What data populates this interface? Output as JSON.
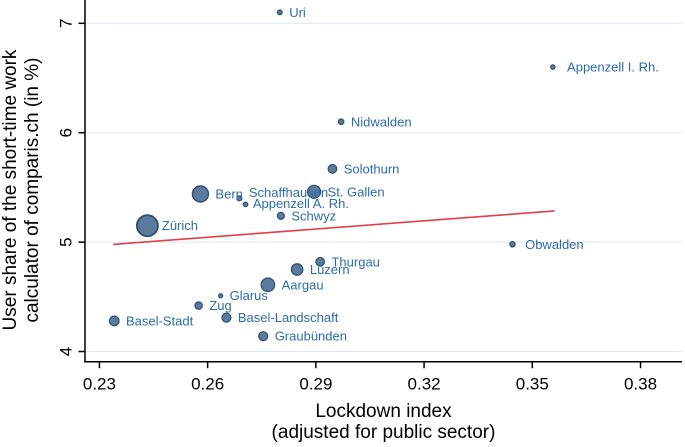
{
  "chart_data": {
    "type": "scatter",
    "title": "",
    "xlabel_lines": [
      "Lockdown index",
      "(adjusted for public sector)"
    ],
    "ylabel_lines": [
      "User share of the short-time work",
      "calculator of comparis.ch (in %)"
    ],
    "x_tick_labels": [
      "0.23",
      "0.26",
      "0.29",
      "0.32",
      "0.35",
      "0.38"
    ],
    "x_tick_values": [
      0.23,
      0.26,
      0.29,
      0.32,
      0.35,
      0.38
    ],
    "y_tick_labels": [
      "4",
      "5",
      "6",
      "7"
    ],
    "y_tick_values": [
      4,
      5,
      6,
      7
    ],
    "x_range": [
      0.226,
      0.3915
    ],
    "y_range": [
      3.907,
      7.213
    ],
    "grid": "horizontal-only",
    "legend": "none",
    "marker_style": "bubble-sized-by-canton",
    "points": [
      {
        "name": "Uri",
        "x": 0.28,
        "y": 7.1,
        "size": 4.8
      },
      {
        "name": "Appenzell I. Rh.",
        "x": 0.3557,
        "y": 6.6,
        "size": 4.4,
        "label_dx": 5
      },
      {
        "name": "Nidwalden",
        "x": 0.297,
        "y": 6.1,
        "size": 5.5
      },
      {
        "name": "Solothurn",
        "x": 0.2946,
        "y": 5.67,
        "size": 8.6
      },
      {
        "name": "Bern",
        "x": 0.258,
        "y": 5.44,
        "size": 16
      },
      {
        "name": "St. Gallen",
        "x": 0.2895,
        "y": 5.46,
        "size": 13
      },
      {
        "name": "Schaffhausen",
        "x": 0.2688,
        "y": 5.4,
        "size": 5,
        "label_dy": -6
      },
      {
        "name": "Appenzell A. Rh.",
        "x": 0.2705,
        "y": 5.345,
        "size": 4.6,
        "label_dx": -2,
        "label_dy": -1
      },
      {
        "name": "Schwyz",
        "x": 0.2803,
        "y": 5.24,
        "size": 7
      },
      {
        "name": "Zürich",
        "x": 0.2433,
        "y": 5.15,
        "size": 21,
        "label_dx": -3
      },
      {
        "name": "Obwalden",
        "x": 0.3445,
        "y": 4.98,
        "size": 5.3,
        "label_dx": 3
      },
      {
        "name": "Thurgau",
        "x": 0.2912,
        "y": 4.82,
        "size": 8.6
      },
      {
        "name": "Luzern",
        "x": 0.2848,
        "y": 4.75,
        "size": 11.5
      },
      {
        "name": "Aargau",
        "x": 0.2767,
        "y": 4.61,
        "size": 13.5
      },
      {
        "name": "Glarus",
        "x": 0.2636,
        "y": 4.51,
        "size": 4
      },
      {
        "name": "Zug",
        "x": 0.2575,
        "y": 4.42,
        "size": 7.4
      },
      {
        "name": "Basel-Stadt",
        "x": 0.2341,
        "y": 4.28,
        "size": 9.6
      },
      {
        "name": "Basel-Landschaft",
        "x": 0.2652,
        "y": 4.31,
        "size": 9
      },
      {
        "name": "Graubünden",
        "x": 0.2754,
        "y": 4.14,
        "size": 9
      }
    ],
    "trend_line": {
      "x1": 0.2338,
      "y1": 4.979,
      "x2": 0.3562,
      "y2": 5.285
    },
    "colors": {
      "marker_fill": "#5b7b9d",
      "marker_stroke": "#2e506f",
      "point_label": "#2d6ca9",
      "trend": "#e0404a",
      "grid": "#dce7f0",
      "axis": "#000000",
      "background": "#ffffff"
    }
  }
}
